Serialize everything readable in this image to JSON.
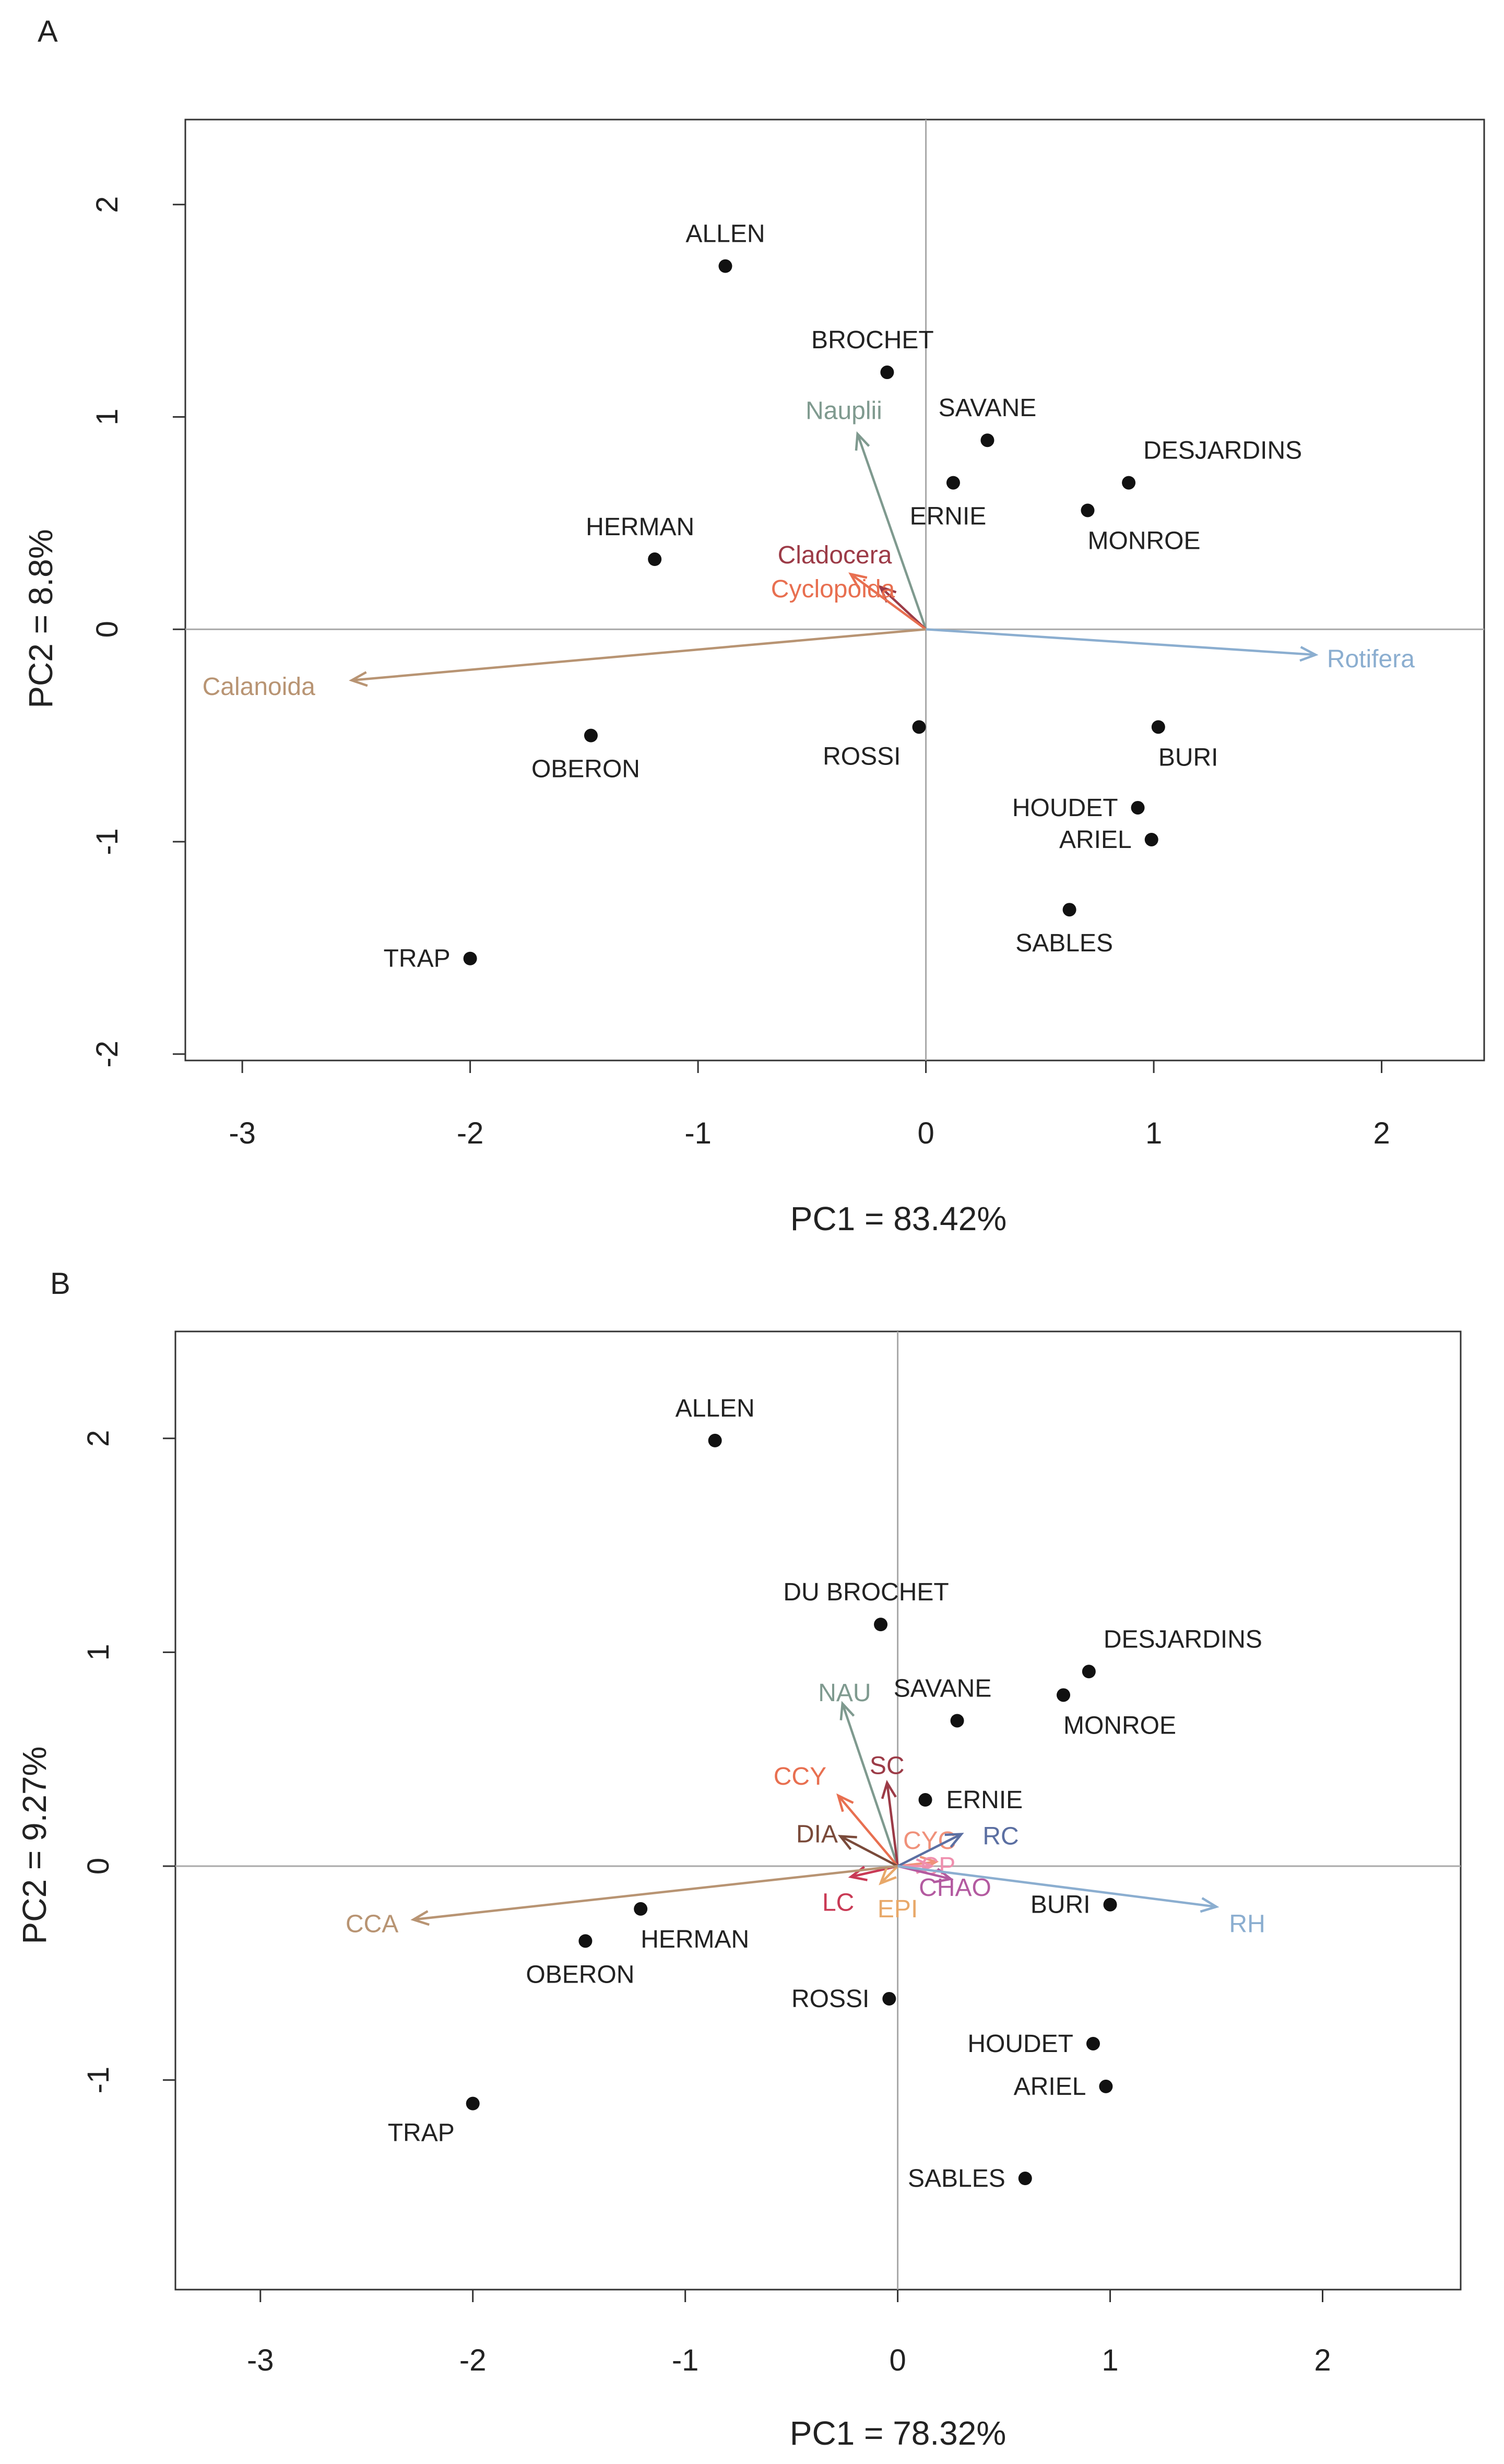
{
  "chart_data": [
    {
      "type": "scatter",
      "subtype": "pca-biplot",
      "panel": "A",
      "xlabel": "PC1 = 83.42%",
      "ylabel": "PC2 = 8.8%",
      "xlim": [
        -3.25,
        2.45
      ],
      "ylim": [
        -2.03,
        2.4
      ],
      "xticks": [
        -3,
        -2,
        -1,
        0,
        1,
        2
      ],
      "yticks": [
        -2,
        -1,
        0,
        1,
        2
      ],
      "points": [
        {
          "label": "ALLEN",
          "x": -0.88,
          "y": 1.71,
          "anchor": "above"
        },
        {
          "label": "BROCHET",
          "x": -0.17,
          "y": 1.21,
          "anchor": "above-left"
        },
        {
          "label": "SAVANE",
          "x": 0.27,
          "y": 0.89,
          "anchor": "above"
        },
        {
          "label": "DESJARDINS",
          "x": 0.89,
          "y": 0.69,
          "anchor": "above-right"
        },
        {
          "label": "ERNIE",
          "x": 0.12,
          "y": 0.69,
          "anchor": "below"
        },
        {
          "label": "MONROE",
          "x": 0.71,
          "y": 0.56,
          "anchor": "below-right"
        },
        {
          "label": "HERMAN",
          "x": -1.19,
          "y": 0.33,
          "anchor": "above-left"
        },
        {
          "label": "OBERON",
          "x": -1.47,
          "y": -0.5,
          "anchor": "below"
        },
        {
          "label": "ROSSI",
          "x": -0.03,
          "y": -0.46,
          "anchor": "below-left"
        },
        {
          "label": "BURI",
          "x": 1.02,
          "y": -0.46,
          "anchor": "below-right"
        },
        {
          "label": "HOUDET",
          "x": 0.93,
          "y": -0.84,
          "anchor": "left"
        },
        {
          "label": "ARIEL",
          "x": 0.99,
          "y": -0.99,
          "anchor": "left"
        },
        {
          "label": "SABLES",
          "x": 0.63,
          "y": -1.32,
          "anchor": "below"
        },
        {
          "label": "TRAP",
          "x": -2.0,
          "y": -1.55,
          "anchor": "left"
        }
      ],
      "vectors": [
        {
          "label": "Nauplii",
          "x": -0.3,
          "y": 0.92,
          "color": "#7f9a8f",
          "label_at": [
            -0.36,
            1.03
          ],
          "label_anchor": "middle"
        },
        {
          "label": "Cladocera",
          "x": -0.2,
          "y": 0.2,
          "color": "#9c3b47",
          "label_at": [
            -0.4,
            0.35
          ],
          "label_anchor": "middle"
        },
        {
          "label": "Cyclopoida",
          "x": -0.33,
          "y": 0.26,
          "color": "#e86f50",
          "label_at": [
            -0.68,
            0.19
          ],
          "label_anchor": "start"
        },
        {
          "label": "Calanoida",
          "x": -2.52,
          "y": -0.24,
          "color": "#b89473",
          "label_at": [
            -2.68,
            -0.27
          ],
          "label_anchor": "end"
        },
        {
          "label": "Rotifera",
          "x": 1.71,
          "y": -0.12,
          "color": "#8baed0",
          "label_at": [
            1.76,
            -0.14
          ],
          "label_anchor": "start"
        }
      ]
    },
    {
      "type": "scatter",
      "subtype": "pca-biplot",
      "panel": "B",
      "xlabel": "PC1 = 78.32%",
      "ylabel": "PC2 = 9.27%",
      "xlim": [
        -3.4,
        2.65
      ],
      "ylim": [
        -1.98,
        2.5
      ],
      "xticks": [
        -3,
        -2,
        -1,
        0,
        1,
        2
      ],
      "yticks": [
        -1,
        0,
        1,
        2
      ],
      "points": [
        {
          "label": "ALLEN",
          "x": -0.86,
          "y": 1.99,
          "anchor": "above"
        },
        {
          "label": "DU BROCHET",
          "x": -0.08,
          "y": 1.13,
          "anchor": "above-left"
        },
        {
          "label": "DESJARDINS",
          "x": 0.9,
          "y": 0.91,
          "anchor": "above-right"
        },
        {
          "label": "SAVANE",
          "x": 0.28,
          "y": 0.68,
          "anchor": "above-left"
        },
        {
          "label": "MONROE",
          "x": 0.78,
          "y": 0.8,
          "anchor": "below-right"
        },
        {
          "label": "ERNIE",
          "x": 0.13,
          "y": 0.31,
          "anchor": "right"
        },
        {
          "label": "HERMAN",
          "x": -1.21,
          "y": -0.2,
          "anchor": "below-right"
        },
        {
          "label": "OBERON",
          "x": -1.47,
          "y": -0.35,
          "anchor": "below"
        },
        {
          "label": "ROSSI",
          "x": -0.04,
          "y": -0.62,
          "anchor": "left"
        },
        {
          "label": "BURI",
          "x": 1.0,
          "y": -0.18,
          "anchor": "left"
        },
        {
          "label": "HOUDET",
          "x": 0.92,
          "y": -0.83,
          "anchor": "left"
        },
        {
          "label": "ARIEL",
          "x": 0.98,
          "y": -1.03,
          "anchor": "left"
        },
        {
          "label": "SABLES",
          "x": 0.6,
          "y": -1.46,
          "anchor": "left"
        },
        {
          "label": "TRAP",
          "x": -2.0,
          "y": -1.11,
          "anchor": "below-left"
        }
      ],
      "vectors": [
        {
          "label": "NAU",
          "x": -0.26,
          "y": 0.76,
          "color": "#7f9a8f",
          "label_at": [
            -0.25,
            0.81
          ],
          "label_anchor": "middle"
        },
        {
          "label": "SC",
          "x": -0.05,
          "y": 0.39,
          "color": "#9c3b47",
          "label_at": [
            -0.05,
            0.47
          ],
          "label_anchor": "middle"
        },
        {
          "label": "CCY",
          "x": -0.28,
          "y": 0.33,
          "color": "#e86f50",
          "label_at": [
            -0.46,
            0.42
          ],
          "label_anchor": "middle"
        },
        {
          "label": "DIA",
          "x": -0.27,
          "y": 0.14,
          "color": "#7a4a3a",
          "label_at": [
            -0.38,
            0.15
          ],
          "label_anchor": "middle"
        },
        {
          "label": "CYC",
          "x": 0.18,
          "y": 0.02,
          "color": "#f0917a",
          "label_at": [
            0.15,
            0.12
          ],
          "label_anchor": "middle"
        },
        {
          "label": "CP",
          "x": 0.16,
          "y": 0.0,
          "color": "#ef8fae",
          "label_at": [
            0.19,
            0.0
          ],
          "label_anchor": "middle"
        },
        {
          "label": "RC",
          "x": 0.3,
          "y": 0.15,
          "color": "#5b6fa2",
          "label_at": [
            0.4,
            0.14
          ],
          "label_anchor": "start"
        },
        {
          "label": "CHAO",
          "x": 0.25,
          "y": -0.06,
          "color": "#b35aa0",
          "label_at": [
            0.27,
            -0.1
          ],
          "label_anchor": "middle"
        },
        {
          "label": "LC",
          "x": -0.22,
          "y": -0.05,
          "color": "#c93a55",
          "label_at": [
            -0.28,
            -0.17
          ],
          "label_anchor": "middle"
        },
        {
          "label": "EPI",
          "x": -0.08,
          "y": -0.08,
          "color": "#e8a869",
          "label_at": [
            0.0,
            -0.2
          ],
          "label_anchor": "middle"
        },
        {
          "label": "CCA",
          "x": -2.28,
          "y": -0.25,
          "color": "#b89473",
          "label_at": [
            -2.35,
            -0.27
          ],
          "label_anchor": "end"
        },
        {
          "label": "RH",
          "x": 1.5,
          "y": -0.19,
          "color": "#8baed0",
          "label_at": [
            1.56,
            -0.27
          ],
          "label_anchor": "start"
        }
      ]
    }
  ]
}
